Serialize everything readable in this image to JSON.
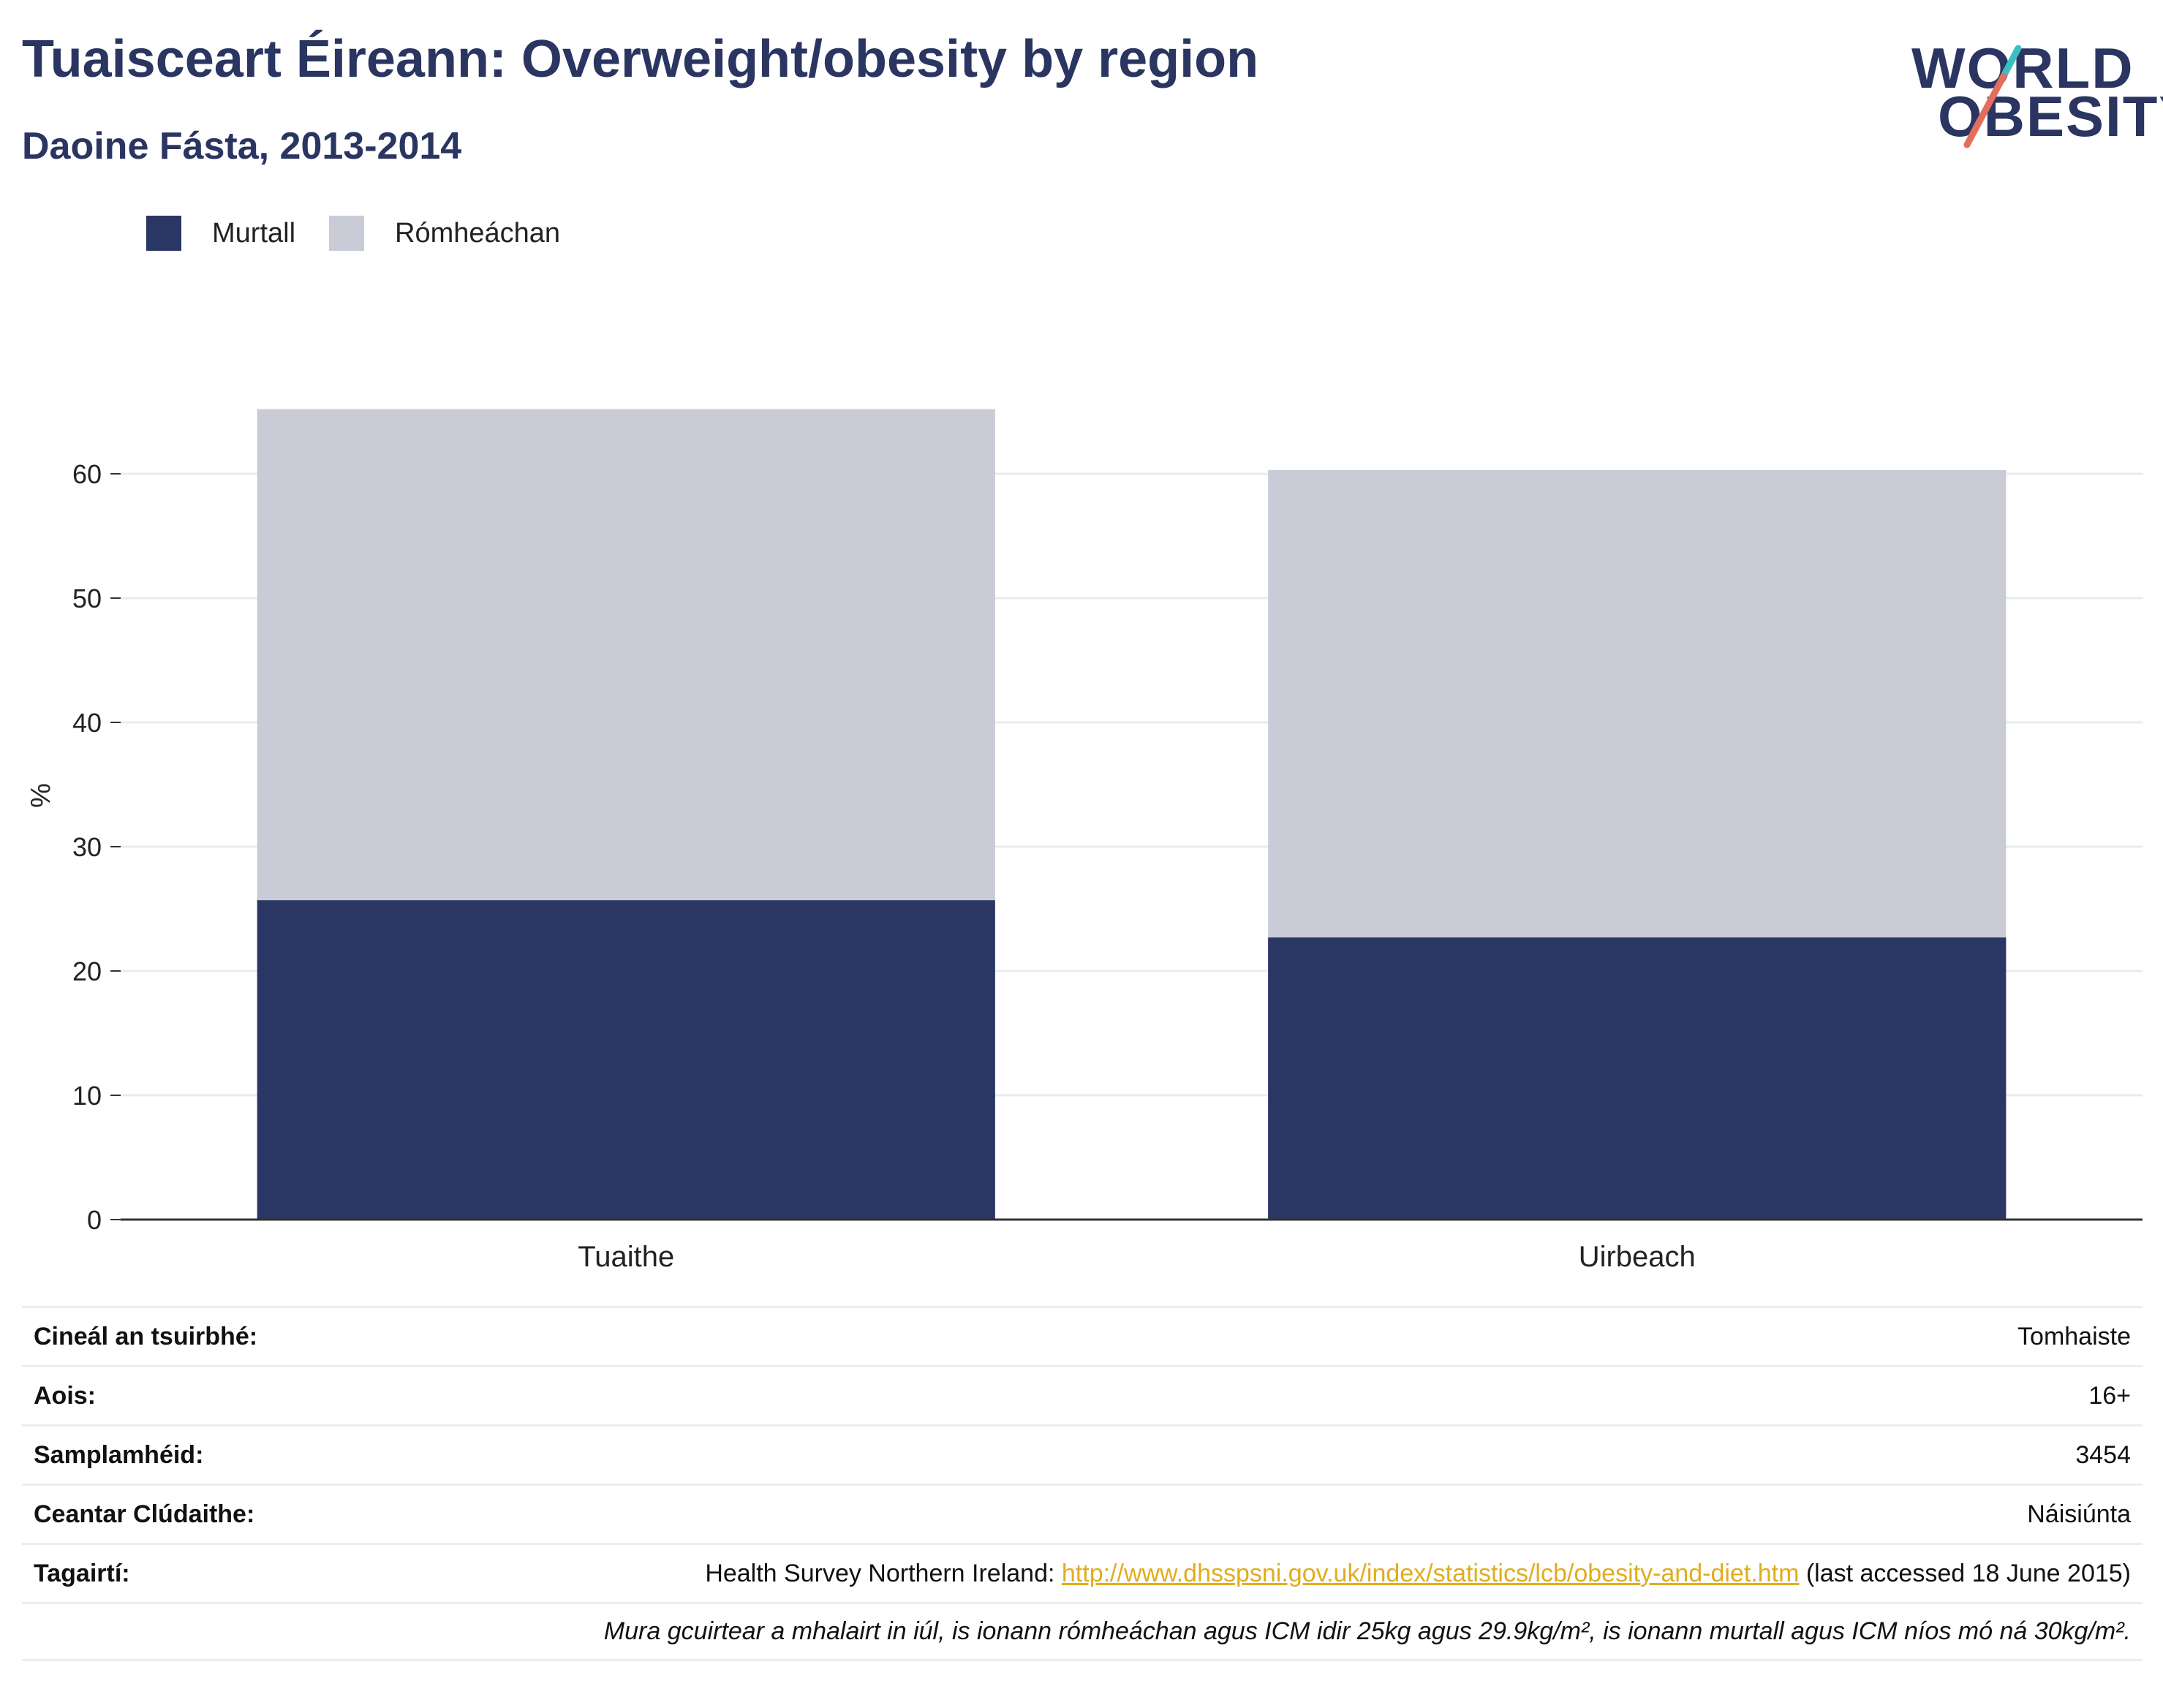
{
  "header": {
    "title": "Tuaisceart Éireann: Overweight/obesity by region",
    "subtitle": "Daoine Fásta, 2013-2014"
  },
  "logo": {
    "line1": "WORLD",
    "line2": "OBESITY"
  },
  "colors": {
    "obese": "#2a3663",
    "overweight": "#c9ccd7",
    "brand": "#2a3561",
    "link": "#e0ad1d",
    "logo_teal": "#3bbec0",
    "logo_coral": "#e46e5d"
  },
  "chart_data": {
    "type": "bar",
    "stacked": true,
    "categories": [
      "Tuaithe",
      "Uirbeach"
    ],
    "series": [
      {
        "name": "Murtall",
        "values": [
          25.7,
          22.7
        ]
      },
      {
        "name": "Rómheáchan",
        "values": [
          39.5,
          37.6
        ]
      }
    ],
    "ylabel": "%",
    "ylim": [
      0,
      70
    ],
    "yticks": [
      0,
      10,
      20,
      30,
      40,
      50,
      60
    ],
    "grid": true,
    "legend": "top-left"
  },
  "meta": {
    "rows": [
      {
        "key": "Cineál an tsuirbhé:",
        "value": "Tomhaiste"
      },
      {
        "key": "Aois:",
        "value": "16+"
      },
      {
        "key": "Samplamhéid:",
        "value": "3454"
      },
      {
        "key": "Ceantar Clúdaithe:",
        "value": "Náisiúnta"
      }
    ],
    "reference": {
      "key": "Tagairtí:",
      "prefix": "Health Survey Northern Ireland: ",
      "link": "http://www.dhsspsni.gov.uk/index/statistics/lcb/obesity-and-diet.htm",
      "suffix": " (last accessed 18 June 2015)"
    },
    "note": "Mura gcuirtear a mhalairt in iúl, is ionann rómheáchan agus ICM idir 25kg agus 29.9kg/m², is ionann murtall agus ICM níos mó ná 30kg/m²."
  }
}
